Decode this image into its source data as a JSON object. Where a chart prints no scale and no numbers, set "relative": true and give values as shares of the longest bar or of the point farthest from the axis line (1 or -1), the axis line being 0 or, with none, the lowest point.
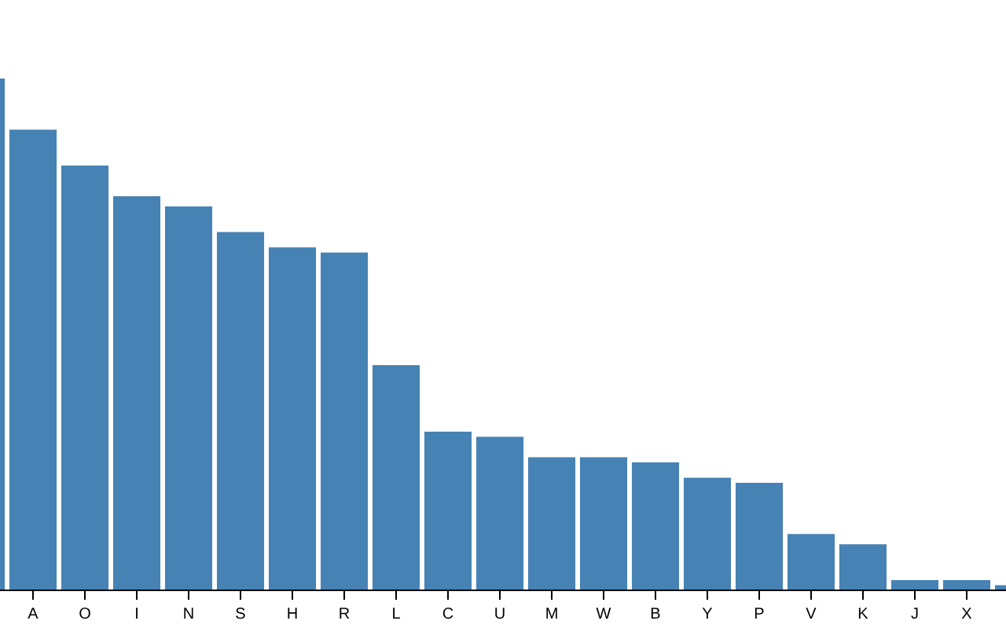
{
  "chart_data": {
    "type": "bar",
    "relative": true,
    "color": "#4682b4",
    "categories": [
      null,
      "A",
      "O",
      "I",
      "N",
      "S",
      "H",
      "R",
      "L",
      "C",
      "U",
      "M",
      "W",
      "B",
      "Y",
      "P",
      "V",
      "K",
      "J",
      "X",
      null
    ],
    "values": [
      1,
      0.9,
      0.83,
      0.77,
      0.75,
      0.7,
      0.67,
      0.66,
      0.44,
      0.31,
      0.3,
      0.26,
      0.26,
      0.25,
      0.22,
      0.21,
      0.11,
      0.09,
      0.02,
      0.02,
      0.01
    ]
  }
}
